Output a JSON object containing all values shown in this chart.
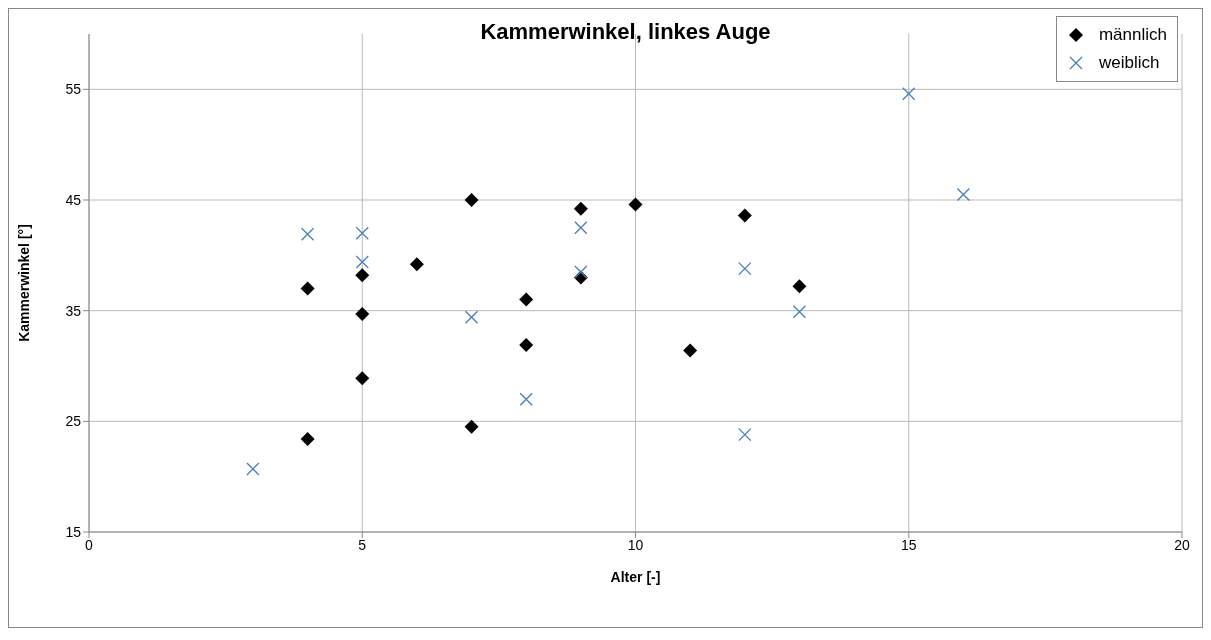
{
  "chart_data": {
    "type": "scatter",
    "title": "Kammerwinkel, linkes Auge",
    "xlabel": "Alter [-]",
    "ylabel": "Kammerwinkel [°]",
    "xlim": [
      0,
      20
    ],
    "xticks": [
      0,
      5,
      10,
      15,
      20
    ],
    "ylim": [
      15,
      60
    ],
    "yticks": [
      15,
      25,
      35,
      45,
      55
    ],
    "grid": true,
    "legend": "top right",
    "series": [
      {
        "name": "männlich",
        "color": "#000000",
        "marker": "diamond",
        "x": [
          4,
          4,
          5,
          5,
          5,
          6,
          7,
          7,
          8,
          8,
          9,
          9,
          10,
          11,
          12,
          13
        ],
        "values": [
          37.0,
          23.4,
          38.2,
          34.7,
          28.9,
          39.2,
          45.0,
          24.5,
          36.0,
          31.9,
          44.2,
          38.0,
          44.6,
          31.4,
          43.6,
          37.2
        ]
      },
      {
        "name": "weiblich",
        "color": "#4a7ebb",
        "marker": "cross",
        "x": [
          3,
          4,
          5,
          5,
          7,
          8,
          9,
          9,
          12,
          12,
          13,
          15,
          16
        ],
        "values": [
          20.7,
          41.9,
          42.0,
          39.4,
          34.4,
          27.0,
          42.5,
          38.5,
          38.8,
          23.8,
          34.9,
          54.6,
          45.5
        ]
      }
    ]
  }
}
